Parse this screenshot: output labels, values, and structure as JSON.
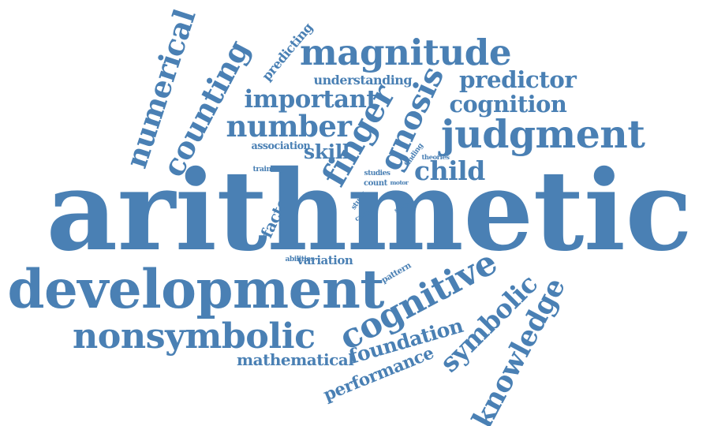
{
  "color": "#4a80b4",
  "words": [
    {
      "text": "arithmetic"
    },
    {
      "text": "development"
    },
    {
      "text": "nonsymbolic"
    },
    {
      "text": "cognitive"
    },
    {
      "text": "symbolic"
    },
    {
      "text": "knowledge"
    },
    {
      "text": "judgment"
    },
    {
      "text": "magnitude"
    },
    {
      "text": "numerical"
    },
    {
      "text": "counting"
    },
    {
      "text": "number"
    },
    {
      "text": "important"
    },
    {
      "text": "finger"
    },
    {
      "text": "gnosis"
    },
    {
      "text": "predictor"
    },
    {
      "text": "cognition"
    },
    {
      "text": "child"
    },
    {
      "text": "skill"
    },
    {
      "text": "mathematical"
    },
    {
      "text": "foundation"
    },
    {
      "text": "performance"
    },
    {
      "text": "understanding"
    },
    {
      "text": "predicting"
    },
    {
      "text": "association"
    },
    {
      "text": "factor"
    },
    {
      "text": "variation"
    },
    {
      "text": "training"
    },
    {
      "text": "studies"
    },
    {
      "text": "count"
    },
    {
      "text": "study"
    },
    {
      "text": "causal"
    },
    {
      "text": "motor"
    },
    {
      "text": "shape"
    },
    {
      "text": "finding"
    },
    {
      "text": "theories"
    },
    {
      "text": "abilities"
    },
    {
      "text": "pattern"
    }
  ]
}
